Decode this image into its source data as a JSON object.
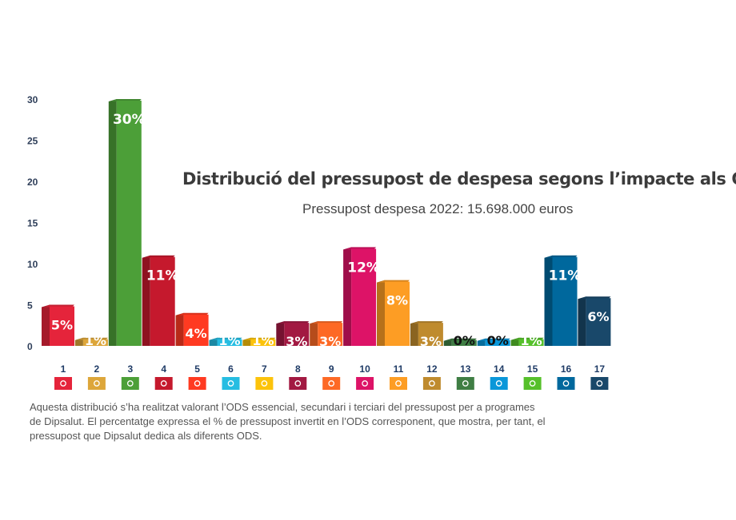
{
  "chart_data": {
    "type": "bar",
    "title": "Distribució del pressupost de despesa segons l’impacte als ODS",
    "subtitle": "Pressupost despesa 2022: 15.698.000 euros",
    "xlabel": "",
    "ylabel": "",
    "ylim": [
      0,
      30
    ],
    "yticks": [
      0,
      5,
      10,
      15,
      20,
      25,
      30
    ],
    "categories": [
      "1",
      "2",
      "3",
      "4",
      "5",
      "6",
      "7",
      "8",
      "9",
      "10",
      "11",
      "12",
      "13",
      "14",
      "15",
      "16",
      "17"
    ],
    "values": [
      5,
      1,
      30,
      11,
      4,
      1,
      1,
      3,
      3,
      12,
      8,
      3,
      0,
      0,
      1,
      11,
      6
    ],
    "labels": [
      "5%",
      "1%",
      "30%",
      "11%",
      "4%",
      "1%",
      "1%",
      "3%",
      "3%",
      "12%",
      "8%",
      "3%",
      "0%",
      "0%",
      "1%",
      "11%",
      "6%"
    ],
    "colors": [
      "#e5243b",
      "#dda63a",
      "#4c9f38",
      "#c5192d",
      "#ff3a21",
      "#26bde2",
      "#fcc30b",
      "#a21942",
      "#fd6925",
      "#dd1367",
      "#fd9d24",
      "#bf8b2e",
      "#3f7e44",
      "#0a97d9",
      "#56c02b",
      "#00689d",
      "#19486a"
    ],
    "icons": [
      "no-poverty-icon",
      "zero-hunger-icon",
      "good-health-icon",
      "quality-education-icon",
      "gender-equality-icon",
      "clean-water-icon",
      "clean-energy-icon",
      "decent-work-icon",
      "industry-innovation-icon",
      "reduced-inequalities-icon",
      "sustainable-cities-icon",
      "responsible-consumption-icon",
      "climate-action-icon",
      "life-below-water-icon",
      "life-on-land-icon",
      "peace-justice-icon",
      "partnerships-icon"
    ],
    "grid": false,
    "legend": "none"
  },
  "note_lines": [
    "Aquesta distribució s’ha realitzat valorant l’ODS essencial, secundari i terciari del pressupost per a programes",
    "de Dipsalut. El percentatge expressa el % de pressupost invertit en l’ODS corresponent, que mostra, per tant, el",
    "pressupost que Dipsalut dedica als diferents ODS."
  ]
}
